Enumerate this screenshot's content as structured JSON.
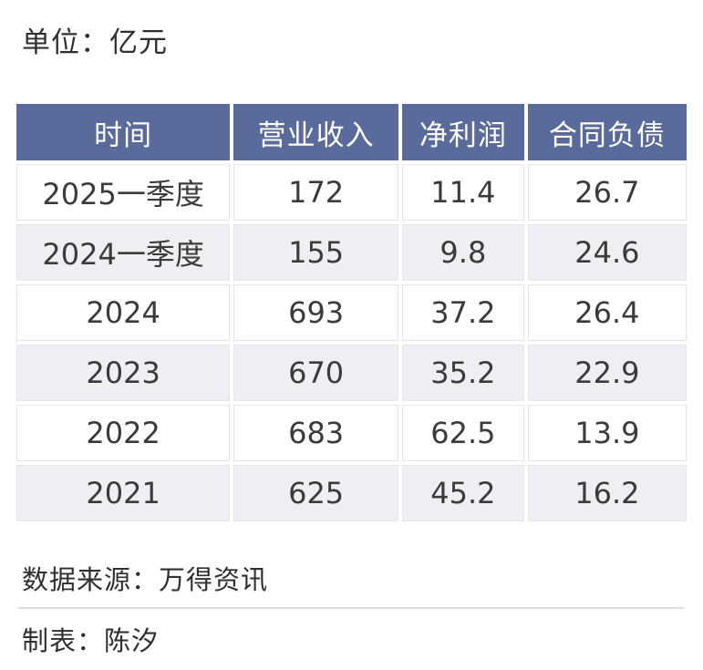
{
  "page": {
    "unit_label": "单位：亿元",
    "source_label": "数据来源：万得资讯",
    "author_label": "制表：陈汐"
  },
  "colors": {
    "header_bg": "#5A6A9A",
    "header_text": "#FFFFFF",
    "row_bg": "#FFFFFF",
    "row_alt_bg": "#EEEFF3",
    "cell_border": "#E3E4E9",
    "body_text": "#3B3B3B",
    "divider": "#DCDCDC"
  },
  "chart_data": {
    "type": "table",
    "unit": "亿元",
    "columns": [
      "时间",
      "营业收入",
      "净利润",
      "合同负债"
    ],
    "rows": [
      [
        "2025一季度",
        "172",
        "11.4",
        "26.7"
      ],
      [
        "2024一季度",
        "155",
        "9.8",
        "24.6"
      ],
      [
        "2024",
        "693",
        "37.2",
        "26.4"
      ],
      [
        "2023",
        "670",
        "35.2",
        "22.9"
      ],
      [
        "2022",
        "683",
        "62.5",
        "13.9"
      ],
      [
        "2021",
        "625",
        "45.2",
        "16.2"
      ]
    ],
    "source": "万得资讯",
    "author": "陈汐"
  }
}
